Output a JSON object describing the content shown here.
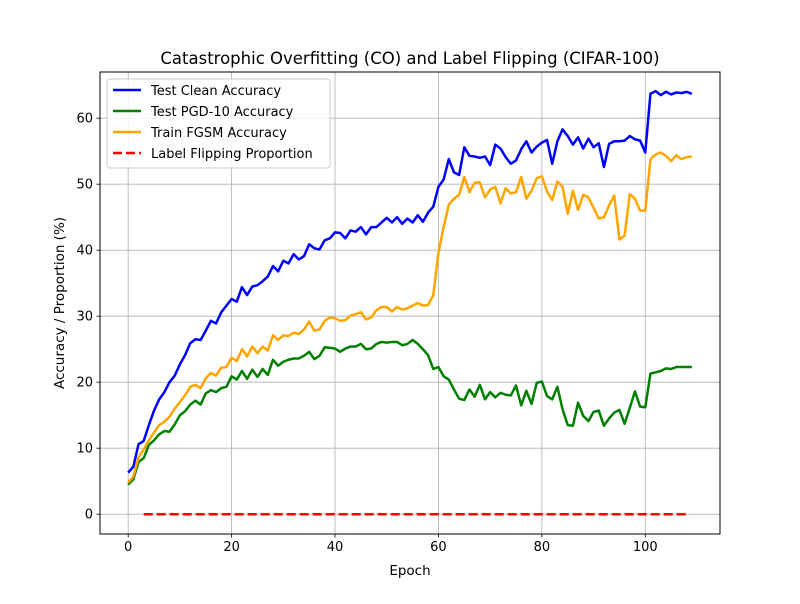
{
  "chart_data": {
    "type": "line",
    "title": "Catastrophic Overfitting (CO) and Label Flipping (CIFAR-100)",
    "xlabel": "Epoch",
    "ylabel": "Accuracy / Proportion (%)",
    "xlim": [
      -5.45,
      114.45
    ],
    "ylim": [
      -3.0,
      67.0
    ],
    "xticks": [
      0,
      20,
      40,
      60,
      80,
      100
    ],
    "yticks": [
      0,
      10,
      20,
      30,
      40,
      50,
      60
    ],
    "grid": true,
    "legend_position": "upper left",
    "series": [
      {
        "name": "Test Clean Accuracy",
        "color": "#0000ff",
        "style": "solid",
        "x_start": 0,
        "values": [
          6.3,
          7.2,
          10.6,
          11.1,
          13.5,
          15.7,
          17.4,
          18.5,
          20.0,
          21.0,
          22.7,
          24.1,
          25.9,
          26.5,
          26.4,
          27.8,
          29.3,
          28.9,
          30.6,
          31.6,
          32.6,
          32.2,
          34.4,
          33.2,
          34.5,
          34.7,
          35.3,
          36.0,
          37.6,
          36.8,
          38.4,
          38.0,
          39.4,
          38.6,
          39.1,
          40.9,
          40.3,
          40.1,
          41.5,
          41.8,
          42.7,
          42.6,
          41.8,
          43.0,
          42.8,
          43.5,
          42.4,
          43.5,
          43.5,
          44.2,
          44.9,
          44.2,
          45.0,
          44.0,
          44.8,
          44.2,
          45.3,
          44.3,
          45.7,
          46.6,
          49.6,
          50.7,
          53.8,
          51.8,
          51.4,
          55.6,
          54.3,
          54.2,
          54.0,
          54.2,
          52.9,
          56.0,
          55.4,
          54.1,
          53.1,
          53.6,
          55.3,
          56.5,
          54.8,
          55.7,
          56.3,
          56.7,
          53.1,
          56.5,
          58.3,
          57.3,
          56.0,
          57.1,
          55.4,
          56.9,
          55.6,
          56.2,
          52.6,
          56.1,
          56.5,
          56.5,
          56.6,
          57.3,
          56.8,
          56.6,
          54.8,
          63.7,
          64.1,
          63.5,
          64.0,
          63.6,
          63.9,
          63.8,
          64.0,
          63.7
        ]
      },
      {
        "name": "Test PGD-10 Accuracy",
        "color": "#008000",
        "style": "solid",
        "x_start": 0,
        "values": [
          4.5,
          5.3,
          7.9,
          8.5,
          10.5,
          11.2,
          12.1,
          12.6,
          12.5,
          13.6,
          15.0,
          15.6,
          16.6,
          17.2,
          16.6,
          18.3,
          18.8,
          18.5,
          19.1,
          19.3,
          20.9,
          20.4,
          21.7,
          20.5,
          21.9,
          20.8,
          22.0,
          21.1,
          23.4,
          22.5,
          23.1,
          23.4,
          23.6,
          23.6,
          24.0,
          24.6,
          23.5,
          24.0,
          25.3,
          25.2,
          25.1,
          24.6,
          25.1,
          25.4,
          25.4,
          25.8,
          25.0,
          25.1,
          25.8,
          26.1,
          26.0,
          26.1,
          26.1,
          25.6,
          25.8,
          26.4,
          25.8,
          25.0,
          24.1,
          22.0,
          22.3,
          20.9,
          20.4,
          18.9,
          17.5,
          17.3,
          18.9,
          17.8,
          19.6,
          17.4,
          18.5,
          17.7,
          18.4,
          18.1,
          18.0,
          19.5,
          16.5,
          18.7,
          16.7,
          19.9,
          20.1,
          17.9,
          17.4,
          19.3,
          15.9,
          13.5,
          13.4,
          16.9,
          14.9,
          14.1,
          15.5,
          15.7,
          13.4,
          14.5,
          15.4,
          15.8,
          13.7,
          16.1,
          18.6,
          16.3,
          16.2,
          21.3,
          21.5,
          21.7,
          22.1,
          22.0,
          22.3,
          22.3,
          22.3,
          22.3
        ]
      },
      {
        "name": "Train FGSM Accuracy",
        "color": "#ffa500",
        "style": "solid",
        "x_start": 0,
        "values": [
          4.8,
          5.7,
          8.6,
          9.8,
          11.2,
          12.4,
          13.5,
          14.0,
          14.8,
          16.0,
          17.0,
          18.0,
          19.3,
          19.6,
          19.1,
          20.6,
          21.4,
          21.0,
          22.2,
          22.3,
          23.7,
          23.2,
          25.0,
          23.9,
          25.4,
          24.4,
          25.4,
          24.8,
          27.1,
          26.4,
          27.1,
          27.0,
          27.5,
          27.3,
          28.0,
          29.2,
          27.8,
          28.0,
          29.3,
          29.8,
          29.7,
          29.3,
          29.4,
          30.1,
          30.3,
          30.6,
          29.5,
          29.8,
          30.9,
          31.4,
          31.4,
          30.7,
          31.4,
          31.0,
          31.2,
          31.6,
          32.0,
          31.6,
          31.7,
          33.2,
          39.6,
          43.5,
          46.9,
          47.8,
          48.4,
          51.1,
          48.8,
          50.2,
          50.3,
          48.0,
          49.2,
          49.6,
          47.1,
          49.4,
          48.6,
          48.8,
          51.1,
          47.8,
          49.0,
          50.9,
          51.2,
          48.9,
          47.6,
          50.4,
          49.6,
          45.5,
          49.0,
          46.1,
          48.4,
          48.0,
          46.4,
          44.8,
          45.0,
          46.8,
          48.3,
          41.6,
          42.2,
          48.5,
          47.8,
          46.0,
          46.0,
          53.8,
          54.5,
          54.8,
          54.3,
          53.5,
          54.4,
          53.8,
          54.1,
          54.2
        ]
      },
      {
        "name": "Label Flipping Proportion",
        "color": "#ff0000",
        "style": "dashed",
        "x_start": 3,
        "values": [
          0,
          0,
          0,
          0,
          0,
          0,
          0,
          0,
          0,
          0,
          0,
          0,
          0,
          0,
          0,
          0,
          0,
          0,
          0,
          0,
          0,
          0,
          0,
          0,
          0,
          0,
          0,
          0,
          0,
          0,
          0,
          0,
          0,
          0,
          0,
          0,
          0,
          0,
          0,
          0,
          0,
          0,
          0,
          0,
          0,
          0,
          0,
          0,
          0,
          0,
          0,
          0,
          0,
          0,
          0,
          0,
          0,
          0,
          0,
          0,
          0,
          0,
          0,
          0,
          0,
          0,
          0,
          0,
          0,
          0,
          0,
          0,
          0,
          0,
          0,
          0,
          0,
          0,
          0,
          0,
          0,
          0,
          0,
          0,
          0,
          0,
          0,
          0,
          0,
          0,
          0,
          0,
          0,
          0,
          0,
          0,
          0,
          0,
          0,
          0,
          0,
          0,
          0,
          0,
          0,
          0
        ]
      }
    ]
  }
}
